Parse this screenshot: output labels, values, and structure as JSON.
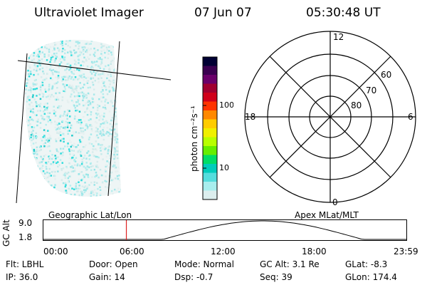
{
  "header": {
    "title": "Ultraviolet Imager",
    "date": "07 Jun 07",
    "time": "05:30:48 UT"
  },
  "colorbar": {
    "unit_label": "photon cm⁻²s⁻¹",
    "ticks": [
      "100",
      "10"
    ],
    "colors": [
      "#000033",
      "#3a0050",
      "#6a006a",
      "#a00030",
      "#d0001a",
      "#ff3300",
      "#ff8800",
      "#ffcc00",
      "#f0f000",
      "#b8ff00",
      "#66ee00",
      "#00dd66",
      "#00ccbb",
      "#55dddd",
      "#a8eeee",
      "#dceeee"
    ]
  },
  "polar": {
    "mlt_labels": {
      "top": "12",
      "left": "18",
      "right": "6",
      "bottom": "0"
    },
    "lat_labels": [
      "60",
      "70",
      "80"
    ]
  },
  "orbit": {
    "left_label": "Geographic Lat/Lon",
    "right_label": "Apex MLat/MLT",
    "axis_label": "GC Alt",
    "y_ticks": [
      "9.0",
      "1.8"
    ],
    "x_ticks": [
      "00:00",
      "06:00",
      "12:00",
      "18:00",
      "23:59"
    ],
    "marker_hour": 5.51,
    "marker_color": "#dd2222"
  },
  "info": {
    "filter": "Flt: LBHL",
    "door": "Door: Open",
    "mode": "Mode: Normal",
    "gc_alt": "GC Alt: 3.1 Re",
    "glat": "GLat:  -8.3",
    "ip": "IP: 36.0",
    "gain": "Gain: 14",
    "dsp": "Dsp:   -0.7",
    "seq": "Seq: 39",
    "glon": "GLon: 174.4"
  }
}
